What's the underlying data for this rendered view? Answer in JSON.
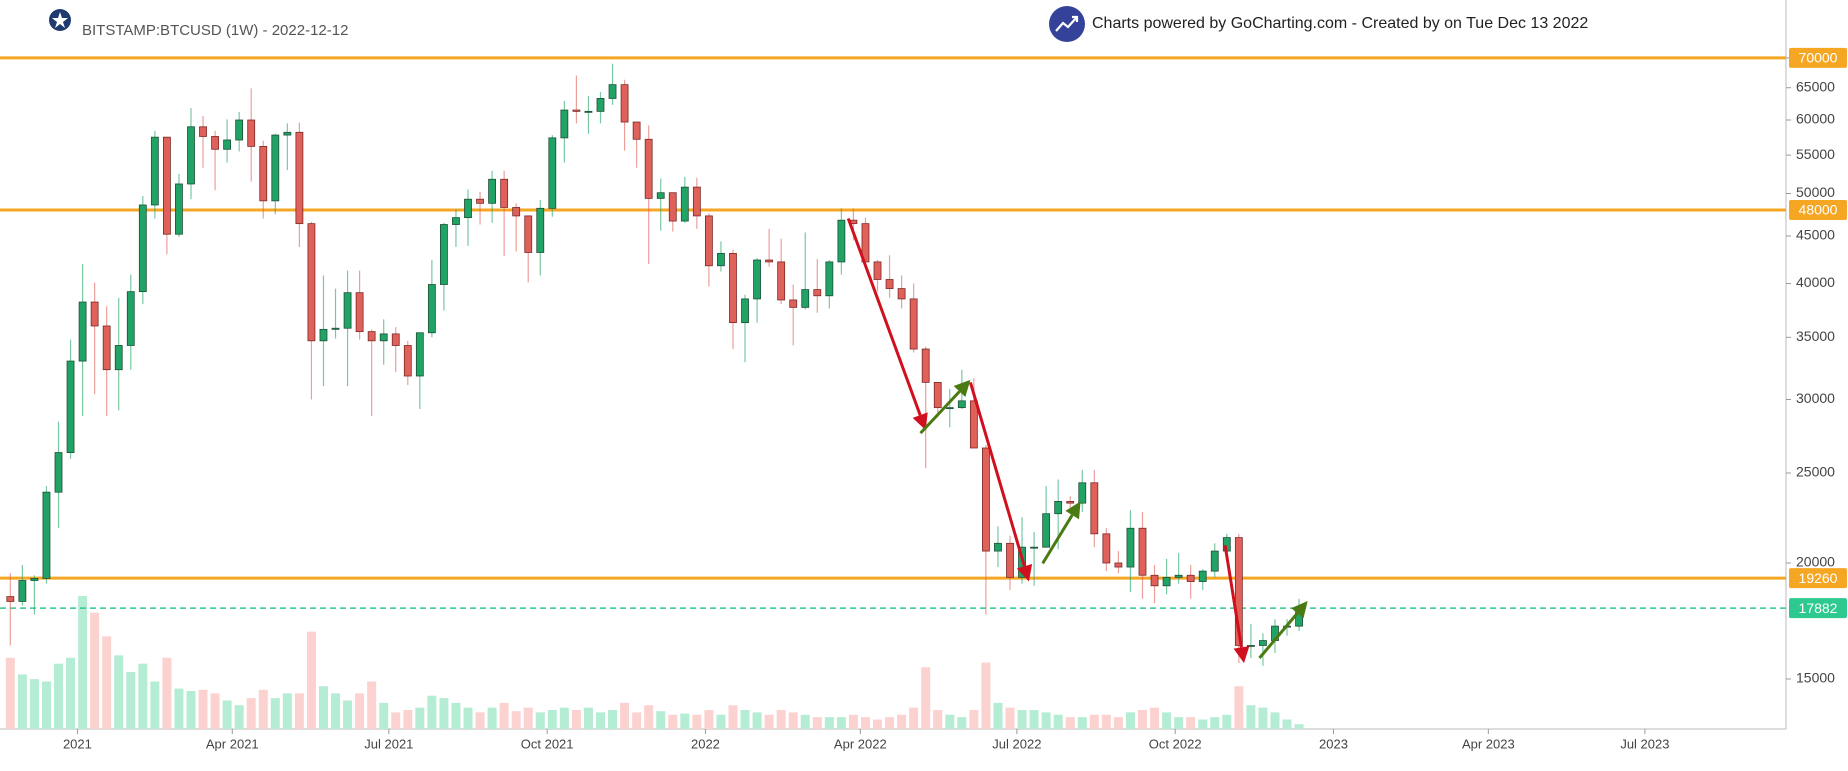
{
  "chart_data": {
    "type": "candlestick",
    "title": "BITSTAMP:BTCUSD (1W) - 2022-12-12",
    "subtitle": "Charts powered by GoCharting.com - Created by  on Tue Dec 13 2022",
    "log_scale": true,
    "grid": false,
    "up_color": "#21a366",
    "down_color": "#e0605a",
    "up_border": "#1d4f37",
    "down_border": "#7a2a27",
    "up_volume_color": "#b5ecd4",
    "down_volume_color": "#fcd2d0",
    "xlim": [
      "2020-11-17",
      "2023-09-21"
    ],
    "ylim": [
      13250,
      80800
    ],
    "yticks": [
      15000,
      20000,
      25000,
      30000,
      35000,
      40000,
      45000,
      50000,
      55000,
      60000,
      65000,
      70000
    ],
    "xticks": [
      {
        "value": "2021-01-01",
        "label": "2021"
      },
      {
        "value": "2021-04-01",
        "label": "Apr 2021"
      },
      {
        "value": "2021-07-01",
        "label": "Jul 2021"
      },
      {
        "value": "2021-10-01",
        "label": "Oct 2021"
      },
      {
        "value": "2022-01-01",
        "label": "2022"
      },
      {
        "value": "2022-04-01",
        "label": "Apr 2022"
      },
      {
        "value": "2022-07-01",
        "label": "Jul 2022"
      },
      {
        "value": "2022-10-01",
        "label": "Oct 2022"
      },
      {
        "value": "2023-01-01",
        "label": "2023"
      },
      {
        "value": "2023-04-01",
        "label": "Apr 2023"
      },
      {
        "value": "2023-07-01",
        "label": "Jul 2023"
      }
    ],
    "hlines": [
      {
        "value": 70000,
        "color": "#f5a623",
        "dashed": false
      },
      {
        "value": 48000,
        "color": "#f5a623",
        "dashed": false
      },
      {
        "value": 19260,
        "color": "#f5a623",
        "dashed": false
      },
      {
        "value": 17882,
        "color": "#2ec98e",
        "dashed": true
      }
    ],
    "arrows": [
      {
        "x": [
          "2022-03-25",
          "2022-05-09"
        ],
        "y": [
          47000,
          27800
        ],
        "color": "#d0101e"
      },
      {
        "x": [
          "2022-05-06",
          "2022-06-04"
        ],
        "y": [
          27600,
          31500
        ],
        "color": "#4a7a12"
      },
      {
        "x": [
          "2022-06-04",
          "2022-07-08"
        ],
        "y": [
          31300,
          19100
        ],
        "color": "#d0101e"
      },
      {
        "x": [
          "2022-07-16",
          "2022-08-07"
        ],
        "y": [
          19980,
          23300
        ],
        "color": "#4a7a12"
      },
      {
        "x": [
          "2022-10-30",
          "2022-11-10"
        ],
        "y": [
          20900,
          15600
        ],
        "color": "#d0101e"
      },
      {
        "x": [
          "2022-11-19",
          "2022-12-17"
        ],
        "y": [
          15800,
          18200
        ],
        "color": "#4a7a12"
      }
    ],
    "x": [
      "2020-11-23",
      "2020-11-30",
      "2020-12-07",
      "2020-12-14",
      "2020-12-21",
      "2020-12-28",
      "2021-01-04",
      "2021-01-11",
      "2021-01-18",
      "2021-01-25",
      "2021-02-01",
      "2021-02-08",
      "2021-02-15",
      "2021-02-22",
      "2021-03-01",
      "2021-03-08",
      "2021-03-15",
      "2021-03-22",
      "2021-03-29",
      "2021-04-05",
      "2021-04-12",
      "2021-04-19",
      "2021-04-26",
      "2021-05-03",
      "2021-05-10",
      "2021-05-17",
      "2021-05-24",
      "2021-05-31",
      "2021-06-07",
      "2021-06-14",
      "2021-06-21",
      "2021-06-28",
      "2021-07-05",
      "2021-07-12",
      "2021-07-19",
      "2021-07-26",
      "2021-08-02",
      "2021-08-09",
      "2021-08-16",
      "2021-08-23",
      "2021-08-30",
      "2021-09-06",
      "2021-09-13",
      "2021-09-20",
      "2021-09-27",
      "2021-10-04",
      "2021-10-11",
      "2021-10-18",
      "2021-10-25",
      "2021-11-01",
      "2021-11-08",
      "2021-11-15",
      "2021-11-22",
      "2021-11-29",
      "2021-12-06",
      "2021-12-13",
      "2021-12-20",
      "2021-12-27",
      "2022-01-03",
      "2022-01-10",
      "2022-01-17",
      "2022-01-24",
      "2022-01-31",
      "2022-02-07",
      "2022-02-14",
      "2022-02-21",
      "2022-02-28",
      "2022-03-07",
      "2022-03-14",
      "2022-03-21",
      "2022-03-28",
      "2022-04-04",
      "2022-04-11",
      "2022-04-18",
      "2022-04-25",
      "2022-05-02",
      "2022-05-09",
      "2022-05-16",
      "2022-05-23",
      "2022-05-30",
      "2022-06-06",
      "2022-06-13",
      "2022-06-20",
      "2022-06-27",
      "2022-07-04",
      "2022-07-11",
      "2022-07-18",
      "2022-07-25",
      "2022-08-01",
      "2022-08-08",
      "2022-08-15",
      "2022-08-22",
      "2022-08-29",
      "2022-09-05",
      "2022-09-12",
      "2022-09-19",
      "2022-09-26",
      "2022-10-03",
      "2022-10-10",
      "2022-10-17",
      "2022-10-24",
      "2022-10-31",
      "2022-11-07",
      "2022-11-14",
      "2022-11-21",
      "2022-11-28",
      "2022-12-05",
      "2022-12-12"
    ],
    "open": [
      18400,
      18180,
      19150,
      19250,
      23840,
      26300,
      33000,
      38200,
      36000,
      32300,
      34300,
      39200,
      48600,
      57500,
      45200,
      51200,
      59000,
      57600,
      55800,
      57100,
      60000,
      56200,
      49100,
      57800,
      58200,
      46400,
      34700,
      35700,
      35800,
      39100,
      35500,
      34700,
      35300,
      34300,
      31800,
      35400,
      39900,
      46300,
      47100,
      49300,
      48800,
      51800,
      48300,
      47300,
      43200,
      48200,
      57400,
      61500,
      61300,
      61300,
      63300,
      65500,
      59700,
      57200,
      49400,
      50100,
      46700,
      50800,
      47300,
      41800,
      43100,
      36300,
      38500,
      42400,
      42200,
      38400,
      37700,
      39400,
      38800,
      42200,
      46800,
      46400,
      42200,
      40400,
      39500,
      38500,
      34000,
      31300,
      29400,
      29400,
      29900,
      26600,
      20600,
      21000,
      19300,
      20800,
      20800,
      22600,
      23300,
      23200,
      24400,
      21500,
      20000,
      19800,
      21800,
      19400,
      18900,
      19300,
      19400,
      19100,
      19600,
      20600,
      21300,
      16300,
      16300,
      16500,
      17100,
      17100
    ],
    "high": [
      19500,
      19900,
      19400,
      24200,
      28400,
      34800,
      42000,
      40100,
      37800,
      38600,
      40900,
      49700,
      58400,
      57500,
      52500,
      61800,
      60600,
      58400,
      60100,
      61200,
      64900,
      57000,
      58000,
      59500,
      59600,
      46600,
      40800,
      39500,
      41300,
      41300,
      35700,
      36600,
      35900,
      34700,
      35400,
      42400,
      46500,
      48100,
      50500,
      50200,
      52900,
      52900,
      48800,
      47300,
      49200,
      57800,
      62900,
      67000,
      63700,
      64300,
      69000,
      66300,
      59700,
      59200,
      51900,
      50100,
      52100,
      52000,
      47600,
      44400,
      43500,
      38900,
      42600,
      45800,
      44700,
      39900,
      45400,
      42500,
      42400,
      48200,
      48200,
      47100,
      42400,
      42900,
      40800,
      40000,
      34200,
      31300,
      30800,
      32300,
      31600,
      26800,
      21900,
      21400,
      22400,
      21600,
      24200,
      24600,
      23600,
      25200,
      25200,
      21800,
      20600,
      22800,
      22700,
      19900,
      20200,
      20500,
      19900,
      19700,
      21000,
      21500,
      21500,
      17200,
      16800,
      17400,
      17400,
      18300
    ],
    "low": [
      16300,
      18000,
      17600,
      19000,
      21800,
      25900,
      28800,
      30400,
      28800,
      29200,
      32300,
      38000,
      47000,
      43000,
      44900,
      49300,
      53300,
      50400,
      54000,
      55500,
      51500,
      47000,
      47500,
      53000,
      43800,
      30000,
      31000,
      34900,
      31000,
      34800,
      28800,
      32700,
      32100,
      31100,
      29300,
      35000,
      37400,
      43800,
      43900,
      46300,
      46500,
      42800,
      43300,
      40100,
      40800,
      47200,
      54000,
      59500,
      58000,
      59500,
      62300,
      55600,
      53300,
      42000,
      45600,
      45500,
      46500,
      45800,
      39700,
      41200,
      34000,
      32900,
      36300,
      41700,
      38000,
      34300,
      37500,
      37200,
      37600,
      40900,
      44500,
      41900,
      39200,
      38600,
      37600,
      33700,
      25300,
      28700,
      28000,
      29300,
      26600,
      17600,
      19800,
      18700,
      19000,
      18900,
      20800,
      20700,
      22700,
      22700,
      20800,
      19600,
      19500,
      18600,
      18300,
      18100,
      18500,
      19000,
      18300,
      18700,
      19300,
      20100,
      15600,
      15800,
      15500,
      16000,
      16700,
      16900
    ],
    "close": [
      18180,
      19150,
      19250,
      23840,
      26300,
      33000,
      38200,
      36000,
      32300,
      34300,
      39200,
      48600,
      57500,
      45200,
      51200,
      59000,
      57600,
      55800,
      57100,
      60000,
      56200,
      49100,
      57800,
      58200,
      46400,
      34700,
      35700,
      35800,
      39100,
      35500,
      34700,
      35300,
      34300,
      31800,
      35400,
      39900,
      46300,
      47100,
      49300,
      48800,
      51800,
      48300,
      47300,
      43200,
      48200,
      57400,
      61500,
      61300,
      61300,
      63300,
      65500,
      59700,
      57200,
      49400,
      50100,
      46700,
      50800,
      47300,
      41800,
      43100,
      36300,
      38500,
      42400,
      42200,
      38400,
      37700,
      39400,
      38800,
      42200,
      46800,
      46400,
      42200,
      40400,
      39500,
      38500,
      34000,
      31300,
      29400,
      29400,
      29900,
      26600,
      20600,
      21000,
      19300,
      20800,
      20800,
      22600,
      23300,
      23200,
      24400,
      21500,
      20000,
      19800,
      21800,
      19400,
      18900,
      19300,
      19400,
      19100,
      19600,
      20600,
      21300,
      16300,
      16300,
      16500,
      17100,
      17100,
      17882
    ],
    "volume": [
      60,
      46,
      42,
      40,
      55,
      60,
      112,
      98,
      78,
      62,
      48,
      55,
      40,
      60,
      34,
      32,
      33,
      30,
      24,
      20,
      26,
      33,
      26,
      30,
      30,
      82,
      36,
      30,
      24,
      30,
      40,
      22,
      14,
      16,
      18,
      28,
      26,
      22,
      18,
      14,
      18,
      22,
      15,
      18,
      14,
      16,
      18,
      16,
      18,
      14,
      16,
      22,
      14,
      20,
      15,
      12,
      13,
      12,
      16,
      12,
      20,
      16,
      14,
      12,
      16,
      14,
      12,
      10,
      10,
      10,
      12,
      10,
      8,
      10,
      12,
      18,
      52,
      16,
      12,
      10,
      16,
      56,
      22,
      18,
      16,
      16,
      14,
      12,
      10,
      10,
      12,
      12,
      10,
      14,
      16,
      18,
      14,
      10,
      10,
      8,
      10,
      12,
      36,
      20,
      18,
      14,
      8,
      4
    ]
  }
}
